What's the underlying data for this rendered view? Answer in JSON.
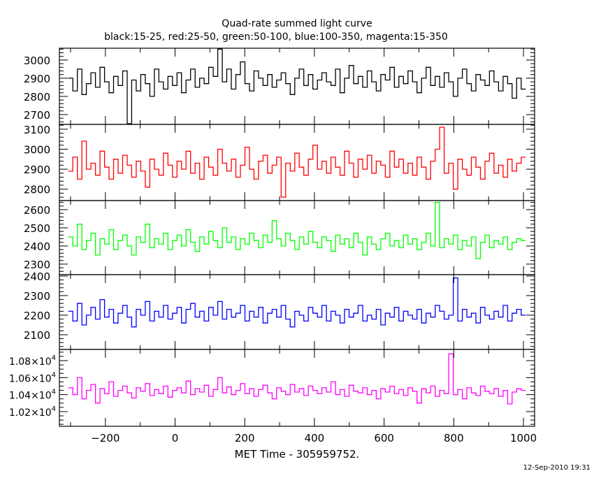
{
  "chart_data": {
    "type": "line",
    "title": "Quad-rate summed light curve",
    "subtitle": "black:15-25, red:25-50, green:50-100, blue:100-350, magenta:15-350",
    "xlabel": "MET Time - 305959752.",
    "timestamp": "12-Sep-2010 19:31",
    "xlim": [
      -332,
      1032
    ],
    "xticks_major": [
      -200,
      0,
      200,
      400,
      600,
      800,
      1000
    ],
    "xtick_labels": [
      "−200",
      "0",
      "200",
      "400",
      "600",
      "800",
      "1000"
    ],
    "x_start": -300,
    "x_step": 13,
    "series": [
      {
        "name": "black:15-25",
        "color": "#000000",
        "ylim": [
          2646,
          3065
        ],
        "yticks": [
          2700,
          2800,
          2900,
          3000
        ],
        "ytick_labels": [
          "2700",
          "2800",
          "2900",
          "3000"
        ],
        "minor": 20,
        "values": [
          2900,
          2830,
          2950,
          2810,
          2870,
          2930,
          2850,
          2960,
          2880,
          2820,
          2910,
          2860,
          2940,
          2650,
          2890,
          2830,
          2920,
          2870,
          2800,
          2950,
          2880,
          2840,
          2910,
          2860,
          2930,
          2820,
          2890,
          2950,
          2850,
          2900,
          2870,
          2960,
          2910,
          3060,
          2880,
          2950,
          2840,
          2920,
          2990,
          2870,
          2830,
          2940,
          2900,
          2860,
          2920,
          2850,
          2890,
          2930,
          2870,
          2810,
          2900,
          2950,
          2860,
          2920,
          2840,
          2890,
          2930,
          2880,
          2860,
          2950,
          2820,
          2900,
          2970,
          2870,
          2910,
          2850,
          2940,
          2880,
          2830,
          2920,
          2890,
          2960,
          2850,
          2910,
          2870,
          2940,
          2880,
          2820,
          2900,
          2960,
          2860,
          2910,
          2850,
          2930,
          2880,
          2800,
          2900,
          2950,
          2870,
          2830,
          2920,
          2890,
          2860,
          2940,
          2880,
          2830,
          2910,
          2870,
          2790,
          2900,
          2840
        ]
      },
      {
        "name": "red:25-50",
        "color": "#ff0000",
        "ylim": [
          2743,
          3124
        ],
        "yticks": [
          2800,
          2900,
          3000,
          3100
        ],
        "ytick_labels": [
          "2800",
          "2900",
          "3000",
          "3100"
        ],
        "minor": 20,
        "values": [
          2890,
          2960,
          2850,
          3040,
          2900,
          2930,
          2870,
          2990,
          2910,
          2850,
          2950,
          2880,
          2970,
          2920,
          2860,
          2940,
          2890,
          2810,
          2950,
          2900,
          2870,
          2980,
          2920,
          2860,
          2940,
          2900,
          2990,
          2880,
          2930,
          2850,
          2960,
          2910,
          2870,
          3000,
          2930,
          2890,
          2950,
          2860,
          2920,
          3010,
          2900,
          2850,
          2940,
          2970,
          2880,
          2920,
          2960,
          2760,
          2930,
          2890,
          2980,
          2910,
          2870,
          2950,
          3020,
          2900,
          2940,
          2880,
          2960,
          2910,
          2870,
          2990,
          2930,
          2860,
          2950,
          2900,
          2970,
          2880,
          2940,
          2920,
          2860,
          2990,
          2910,
          2950,
          2880,
          2930,
          2870,
          2960,
          2910,
          2850,
          2940,
          3000,
          3110,
          2880,
          2930,
          2800,
          2950,
          2900,
          2870,
          2960,
          2910,
          2850,
          2940,
          2980,
          2880,
          2920,
          2860,
          2950,
          2890,
          2930,
          2960
        ]
      },
      {
        "name": "green:50-100",
        "color": "#00ff00",
        "ylim": [
          2242,
          2650
        ],
        "yticks": [
          2300,
          2400,
          2500,
          2600
        ],
        "ytick_labels": [
          "2300",
          "2400",
          "2500",
          "2600"
        ],
        "minor": 20,
        "values": [
          2450,
          2400,
          2520,
          2380,
          2430,
          2470,
          2350,
          2440,
          2410,
          2490,
          2380,
          2430,
          2460,
          2400,
          2350,
          2450,
          2420,
          2520,
          2390,
          2440,
          2410,
          2470,
          2380,
          2430,
          2460,
          2400,
          2490,
          2420,
          2370,
          2450,
          2410,
          2480,
          2430,
          2390,
          2500,
          2420,
          2450,
          2380,
          2440,
          2410,
          2470,
          2430,
          2390,
          2460,
          2420,
          2540,
          2440,
          2400,
          2470,
          2430,
          2380,
          2450,
          2410,
          2480,
          2420,
          2390,
          2450,
          2430,
          2370,
          2460,
          2410,
          2440,
          2390,
          2470,
          2420,
          2350,
          2450,
          2410,
          2380,
          2440,
          2470,
          2400,
          2430,
          2390,
          2460,
          2410,
          2440,
          2380,
          2420,
          2470,
          2400,
          2640,
          2390,
          2440,
          2410,
          2460,
          2380,
          2430,
          2400,
          2450,
          2330,
          2420,
          2460,
          2390,
          2430,
          2410,
          2450,
          2380,
          2420,
          2440,
          2430
        ]
      },
      {
        "name": "blue:100-350",
        "color": "#0000ff",
        "ylim": [
          2025,
          2407
        ],
        "yticks": [
          2100,
          2200,
          2300,
          2400
        ],
        "ytick_labels": [
          "2100",
          "2200",
          "2300",
          "2400"
        ],
        "minor": 20,
        "values": [
          2220,
          2170,
          2260,
          2150,
          2200,
          2240,
          2180,
          2280,
          2190,
          2230,
          2160,
          2210,
          2250,
          2190,
          2140,
          2230,
          2200,
          2270,
          2170,
          2220,
          2190,
          2250,
          2180,
          2210,
          2240,
          2160,
          2230,
          2260,
          2190,
          2220,
          2170,
          2240,
          2200,
          2270,
          2180,
          2230,
          2190,
          2210,
          2250,
          2170,
          2220,
          2190,
          2240,
          2160,
          2210,
          2230,
          2190,
          2250,
          2180,
          2140,
          2220,
          2200,
          2170,
          2240,
          2210,
          2190,
          2250,
          2170,
          2220,
          2200,
          2160,
          2230,
          2190,
          2210,
          2250,
          2170,
          2200,
          2180,
          2230,
          2150,
          2210,
          2190,
          2240,
          2170,
          2220,
          2200,
          2180,
          2230,
          2160,
          2210,
          2190,
          2250,
          2220,
          2180,
          2200,
          2390,
          2170,
          2230,
          2190,
          2210,
          2160,
          2240,
          2200,
          2180,
          2220,
          2190,
          2250,
          2170,
          2210,
          2230,
          2200
        ]
      },
      {
        "name": "magenta:15-350",
        "color": "#ff00ff",
        "ylim": [
          10027,
          10932
        ],
        "yticks": [
          10200,
          10400,
          10600,
          10800
        ],
        "ytick_labels": [
          "1.02×10",
          "1.04×10",
          "1.06×10",
          "1.08×10"
        ],
        "ytick_exponent": "4",
        "minor": 50,
        "values": [
          10480,
          10400,
          10600,
          10350,
          10450,
          10520,
          10300,
          10470,
          10410,
          10550,
          10380,
          10450,
          10500,
          10420,
          10360,
          10480,
          10440,
          10530,
          10390,
          10460,
          10410,
          10500,
          10370,
          10450,
          10480,
          10420,
          10560,
          10400,
          10470,
          10430,
          10510,
          10380,
          10460,
          10600,
          10420,
          10490,
          10400,
          10450,
          10530,
          10410,
          10470,
          10380,
          10460,
          10510,
          10420,
          10350,
          10480,
          10440,
          10400,
          10520,
          10430,
          10470,
          10390,
          10500,
          10450,
          10410,
          10480,
          10430,
          10550,
          10400,
          10460,
          10380,
          10510,
          10440,
          10420,
          10480,
          10400,
          10450,
          10350,
          10470,
          10430,
          10500,
          10410,
          10460,
          10390,
          10480,
          10440,
          10300,
          10470,
          10420,
          10500,
          10380,
          10450,
          10410,
          10880,
          10400,
          10460,
          10350,
          10480,
          10420,
          10390,
          10500,
          10440,
          10410,
          10470,
          10380,
          10450,
          10290,
          10430,
          10470,
          10450
        ]
      }
    ]
  }
}
